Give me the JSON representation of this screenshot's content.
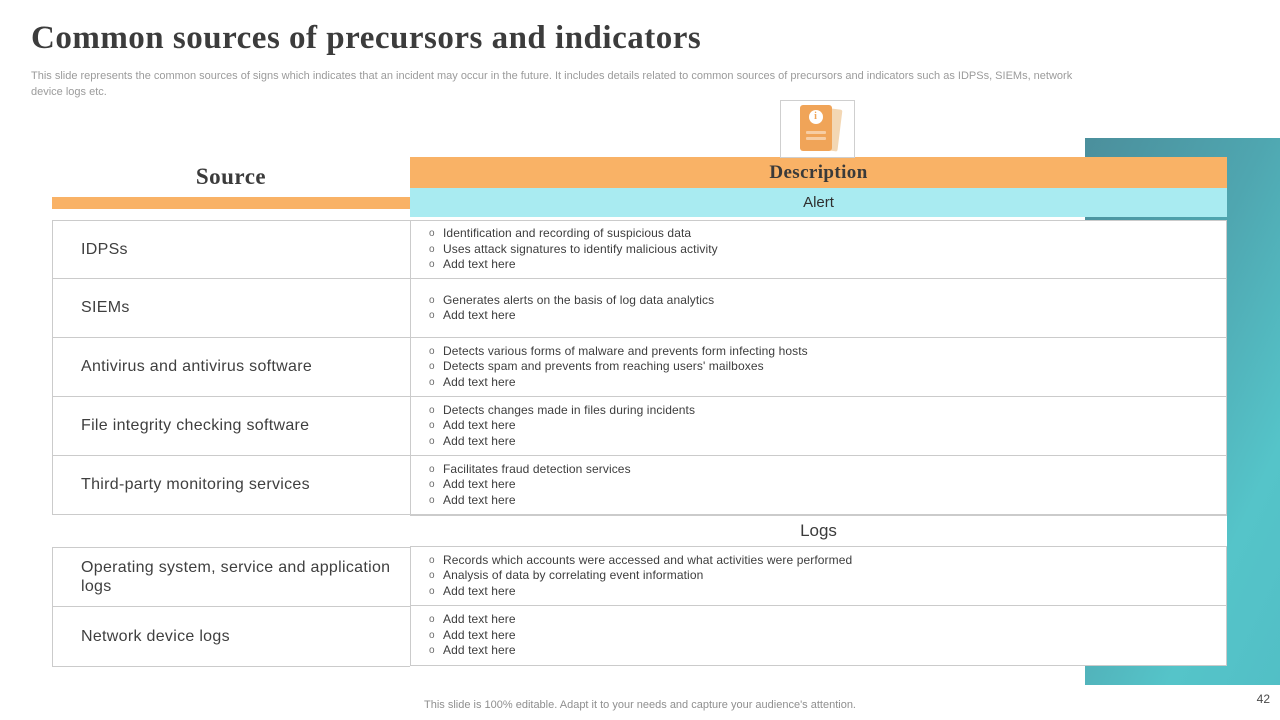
{
  "slide": {
    "title": "Common sources of precursors and indicators",
    "subtitle": "This slide represents the common sources of signs which indicates that an incident may occur in the future. It includes details related to common sources of precursors and indicators such as IDPSs, SIEMs, network device logs etc.",
    "footer": "This slide is 100% editable. Adapt it to your needs and capture your audience's attention.",
    "page_number": "42"
  },
  "table": {
    "source_header": "Source",
    "description_header": "Description",
    "sections": [
      {
        "label": "Alert",
        "rows": [
          {
            "source": "IDPSs",
            "bullets": [
              "Identification and recording of suspicious data",
              "Uses attack signatures to identify malicious activity",
              "Add text here"
            ]
          },
          {
            "source": "SIEMs",
            "bullets": [
              "Generates alerts on the basis of log data analytics",
              "Add text here"
            ]
          },
          {
            "source": "Antivirus and antivirus software",
            "bullets": [
              "Detects various forms of malware and prevents form infecting hosts",
              "Detects spam and prevents from reaching users' mailboxes",
              "Add text here"
            ]
          },
          {
            "source": "File integrity checking software",
            "bullets": [
              "Detects changes made in files during incidents",
              "Add text here",
              "Add text here"
            ]
          },
          {
            "source": "Third-party monitoring services",
            "bullets": [
              "Facilitates fraud detection services",
              "Add text here",
              "Add text here"
            ]
          }
        ]
      },
      {
        "label": "Logs",
        "rows": [
          {
            "source": "Operating system, service and application logs",
            "bullets": [
              "Records which accounts were accessed and what activities were performed",
              "Analysis of data by correlating event information",
              "Add text here"
            ]
          },
          {
            "source": "Network device logs",
            "bullets": [
              "Add text here",
              "Add text here",
              "Add text here"
            ]
          }
        ]
      }
    ]
  },
  "icons": {
    "document_info": "info-document-icon"
  },
  "colors": {
    "accent_orange": "#f9b266",
    "accent_cyan": "#a9ebf1",
    "teal_dark": "#4b8f9c",
    "teal_light": "#55c4c9",
    "border": "#cbcbcb"
  }
}
